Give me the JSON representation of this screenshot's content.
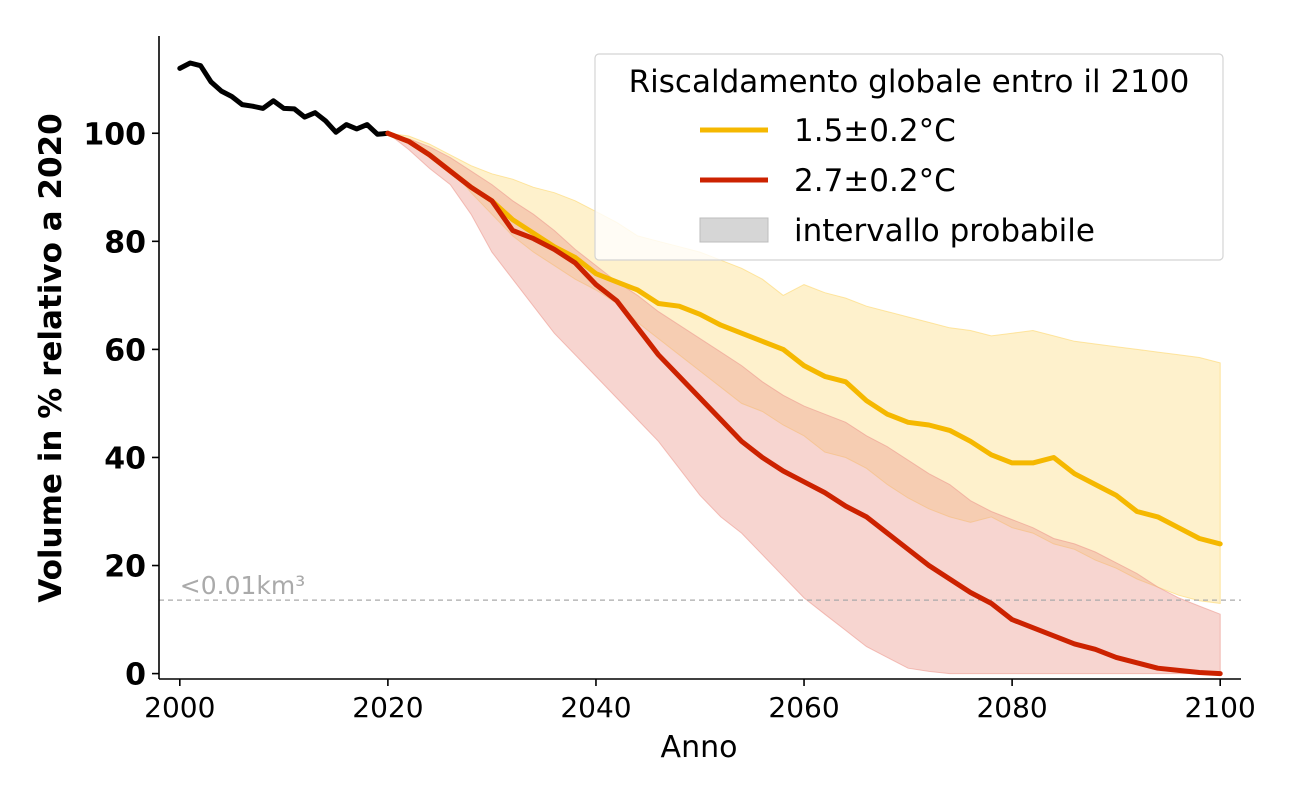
{
  "chart_data": {
    "type": "line",
    "xlabel": "Anno",
    "ylabel": "Volume in % relativo a 2020",
    "xlim": [
      1998,
      2102
    ],
    "ylim": [
      -1,
      118
    ],
    "x_ticks": [
      2000,
      2020,
      2040,
      2060,
      2080,
      2100
    ],
    "x_tick_labels": [
      "2000",
      "2020",
      "2040",
      "2060",
      "2080",
      "2100"
    ],
    "y_ticks": [
      0,
      20,
      40,
      60,
      80,
      100
    ],
    "y_tick_labels": [
      "0",
      "20",
      "40",
      "60",
      "80",
      "100"
    ],
    "grid": false,
    "legend": {
      "title": "Riscaldamento globale entro il 2100",
      "position": "top-right",
      "entries": [
        {
          "label": "1.5±0.2°C",
          "color": "#f5b800"
        },
        {
          "label": "2.7±0.2°C",
          "color": "#cc2200"
        },
        {
          "label": "intervallo probabile",
          "color": "#d6d6d6"
        }
      ]
    },
    "threshold": {
      "y": 13.6,
      "label": "<0.01km³",
      "color": "#aaaaaa"
    },
    "historical": {
      "color": "#000000",
      "x": [
        2000,
        2001,
        2002,
        2003,
        2004,
        2005,
        2006,
        2007,
        2008,
        2009,
        2010,
        2011,
        2012,
        2013,
        2014,
        2015,
        2016,
        2017,
        2018,
        2019,
        2020
      ],
      "y": [
        112,
        113,
        112.5,
        109.5,
        107.8,
        106.8,
        105.3,
        105,
        104.6,
        106,
        104.6,
        104.5,
        103,
        103.8,
        102.3,
        100.2,
        101.6,
        100.8,
        101.6,
        99.8,
        100
      ]
    },
    "series": [
      {
        "name": "1.5±0.2°C",
        "color": "#f5b800",
        "band_color": "#fdd76c",
        "x": [
          2020,
          2022,
          2024,
          2026,
          2028,
          2030,
          2032,
          2034,
          2036,
          2038,
          2040,
          2042,
          2044,
          2046,
          2048,
          2050,
          2052,
          2054,
          2056,
          2058,
          2060,
          2062,
          2064,
          2066,
          2068,
          2070,
          2072,
          2074,
          2076,
          2078,
          2080,
          2082,
          2084,
          2086,
          2088,
          2090,
          2092,
          2094,
          2096,
          2098,
          2100
        ],
        "y": [
          100,
          98.5,
          96,
          93,
          90,
          87.5,
          84,
          81.5,
          79,
          77,
          74,
          72.5,
          71,
          68.5,
          68,
          66.5,
          64.5,
          63,
          61.5,
          60,
          57,
          55,
          54,
          50.5,
          48,
          46.5,
          46,
          45,
          43,
          40.5,
          39,
          39,
          40,
          37,
          35,
          33,
          30,
          29,
          27,
          25,
          24
        ],
        "lower": [
          100,
          98.8,
          96.5,
          93.5,
          89,
          85,
          81,
          78,
          75.5,
          73,
          71,
          68.5,
          65,
          62,
          59,
          56,
          53,
          50,
          48.5,
          46,
          44,
          41,
          40,
          38,
          35,
          32.5,
          30.5,
          29,
          28,
          29,
          27,
          26,
          24,
          23,
          21,
          19.5,
          17.5,
          16,
          14.5,
          13.5,
          13
        ],
        "upper": [
          100,
          99.5,
          98,
          96,
          94,
          92.5,
          91.5,
          90,
          89,
          87.5,
          85.5,
          83.5,
          81,
          80,
          79,
          78,
          76.5,
          75,
          73,
          70,
          72,
          70.5,
          69.5,
          68,
          67,
          66,
          65,
          64,
          63.5,
          62.5,
          63,
          63.5,
          62.5,
          61.5,
          61,
          60.5,
          60,
          59.5,
          59,
          58.5,
          57.5
        ]
      },
      {
        "name": "2.7±0.2°C",
        "color": "#cc2200",
        "band_color": "#ec9a90",
        "x": [
          2020,
          2022,
          2024,
          2026,
          2028,
          2030,
          2032,
          2034,
          2036,
          2038,
          2040,
          2042,
          2044,
          2046,
          2048,
          2050,
          2052,
          2054,
          2056,
          2058,
          2060,
          2062,
          2064,
          2066,
          2068,
          2070,
          2072,
          2074,
          2076,
          2078,
          2080,
          2082,
          2084,
          2086,
          2088,
          2090,
          2092,
          2094,
          2096,
          2098,
          2100
        ],
        "y": [
          100,
          98.5,
          96,
          93,
          90,
          87.5,
          82,
          80.5,
          78.5,
          76,
          72,
          69,
          64,
          59,
          55,
          51,
          47,
          43,
          40,
          37.5,
          35.5,
          33.5,
          31,
          29,
          26,
          23,
          20,
          17.5,
          15,
          13,
          10,
          8.5,
          7,
          5.5,
          4.5,
          3,
          2,
          1,
          0.6,
          0.2,
          0
        ],
        "lower": [
          100,
          97,
          93.5,
          90.5,
          85,
          78,
          73,
          68,
          63,
          59,
          55,
          51,
          47,
          43,
          38,
          33,
          29,
          26,
          22,
          18,
          14,
          11,
          8,
          5,
          3,
          1,
          0.4,
          0,
          0,
          0,
          0,
          0,
          0,
          0,
          0,
          0,
          0,
          0,
          0,
          0,
          0
        ],
        "upper": [
          100,
          99,
          97.5,
          95.5,
          93,
          90.5,
          87.5,
          85,
          82,
          78.5,
          75.5,
          72.5,
          70,
          67,
          64.5,
          62,
          59.5,
          57,
          54,
          51.5,
          49.5,
          48,
          46.5,
          44,
          42,
          39.5,
          37,
          35,
          32,
          30,
          28.5,
          27,
          25,
          24,
          22.5,
          20.5,
          18.5,
          16,
          14,
          12.5,
          11
        ]
      }
    ]
  }
}
